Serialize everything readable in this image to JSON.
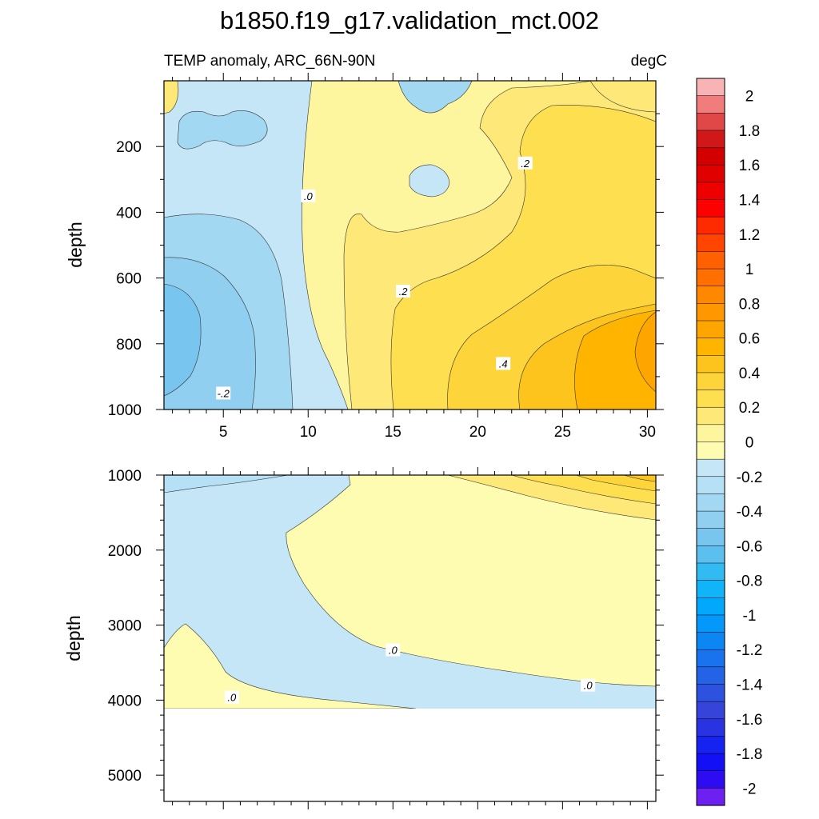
{
  "chart_data": {
    "type": "heatmap",
    "title": "b1850.f19_g17.validation_mct.002",
    "subtitle_left": "TEMP anomaly, ARC_66N-90N",
    "subtitle_right": "degC",
    "upper_panel": {
      "xlabel": "",
      "ylabel": "depth",
      "xlim": [
        1.5,
        30.5
      ],
      "ylim": [
        0,
        1000
      ],
      "x_ticks": [
        5,
        10,
        15,
        20,
        25,
        30
      ],
      "x_tick_labels": [
        "5",
        "10",
        "15",
        "20",
        "25",
        "30"
      ],
      "y_ticks": [
        200,
        400,
        600,
        800,
        1000
      ],
      "y_tick_labels": [
        "200",
        "400",
        "600",
        "800",
        "1000"
      ],
      "contour_labels": [
        {
          "text": ".0",
          "x": 10.0,
          "y": 350
        },
        {
          "text": ".2",
          "x": 15.6,
          "y": 640
        },
        {
          "text": ".2",
          "x": 22.8,
          "y": 250
        },
        {
          "text": ".4",
          "x": 21.5,
          "y": 860
        },
        {
          "text": "-.2",
          "x": 5.0,
          "y": 950
        }
      ]
    },
    "lower_panel": {
      "xlabel": "",
      "ylabel": "depth",
      "xlim": [
        1.5,
        30.5
      ],
      "ylim": [
        1000,
        5350
      ],
      "y_ticks": [
        1000,
        2000,
        3000,
        4000,
        5000
      ],
      "y_tick_labels": [
        "1000",
        "2000",
        "3000",
        "4000",
        "5000"
      ],
      "bottom_depth": 4120,
      "contour_labels": [
        {
          "text": ".0",
          "x": 15.0,
          "y": 3330
        },
        {
          "text": ".0",
          "x": 26.5,
          "y": 3800
        },
        {
          "text": ".0",
          "x": 5.5,
          "y": 3960
        }
      ]
    },
    "colorbar": {
      "range": [
        -2.1,
        2.1
      ],
      "step": 0.1,
      "labels": [
        "2",
        "1.8",
        "1.6",
        "1.4",
        "1.2",
        "1",
        "0.8",
        "0.6",
        "0.4",
        "0.2",
        "0",
        "-0.2",
        "-0.4",
        "-0.6",
        "-0.8",
        "-1",
        "-1.2",
        "-1.4",
        "-1.6",
        "-1.8",
        "-2"
      ],
      "label_values": [
        2,
        1.8,
        1.6,
        1.4,
        1.2,
        1,
        0.8,
        0.6,
        0.4,
        0.2,
        0,
        -0.2,
        -0.4,
        -0.6,
        -0.8,
        -1,
        -1.2,
        -1.4,
        -1.6,
        -1.8,
        -2
      ],
      "colors_top_to_bottom": [
        "#f8b4b4",
        "#f07c7c",
        "#e04848",
        "#d01818",
        "#d20000",
        "#e00000",
        "#ee0000",
        "#ff0000",
        "#ff2a00",
        "#ff4500",
        "#ff6000",
        "#ff7000",
        "#ff8800",
        "#ff9800",
        "#ffa500",
        "#ffb400",
        "#fdc41e",
        "#fdd43a",
        "#fddf4f",
        "#fee878",
        "#fef59f",
        "#fefcb0",
        "#c5e6f6",
        "#b5e0f5",
        "#a3d8f2",
        "#90cfef",
        "#78c6ef",
        "#5cc0ef",
        "#32bbf2",
        "#11b4f8",
        "#02a8fc",
        "#0398fa",
        "#0c86f3",
        "#1a73ee",
        "#2462e6",
        "#2d52e0",
        "#3744d9",
        "#2a33e2",
        "#1622f0",
        "#1410f5",
        "#2e0cf2",
        "#6d21f0"
      ]
    }
  }
}
